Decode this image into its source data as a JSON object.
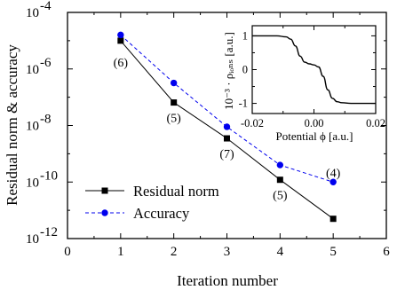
{
  "chart_data": [
    {
      "type": "line",
      "xlabel": "Iteration number",
      "ylabel": "Residual norm & accuracy",
      "xlim": [
        0,
        6
      ],
      "ylim_log10": [
        -12,
        -4
      ],
      "yscale": "log",
      "x_ticks": [
        "0",
        "1",
        "2",
        "3",
        "4",
        "5",
        "6"
      ],
      "y_ticks": [
        {
          "base": "10",
          "exp": "-4"
        },
        {
          "base": "10",
          "exp": "-6"
        },
        {
          "base": "10",
          "exp": "-8"
        },
        {
          "base": "10",
          "exp": "-10"
        },
        {
          "base": "10",
          "exp": "-12"
        }
      ],
      "legend_position": "lower-left",
      "series": [
        {
          "name": "Residual norm",
          "color": "#000000",
          "marker": "square",
          "linestyle": "solid",
          "x": [
            1,
            2,
            3,
            4,
            5
          ],
          "y": [
            1e-05,
            6.5e-08,
            3.5e-09,
            1.2e-10,
            5e-12
          ]
        },
        {
          "name": "Accuracy",
          "color": "#0000ee",
          "marker": "circle",
          "linestyle": "dashed",
          "x": [
            1,
            2,
            3,
            4,
            5
          ],
          "y": [
            1.6e-05,
            3.2e-07,
            9e-09,
            4e-10,
            1e-10
          ]
        }
      ],
      "annotations": [
        {
          "text": "(6)",
          "x": 1,
          "y": 6e-06
        },
        {
          "text": "(5)",
          "x": 2,
          "y": 6.5e-08
        },
        {
          "text": "(7)",
          "x": 3,
          "y": 3.5e-09
        },
        {
          "text": "(5)",
          "x": 4,
          "y": 1.2e-10
        },
        {
          "text": "(4)",
          "x": 5,
          "y": 1e-10
        }
      ]
    },
    {
      "type": "line",
      "inset": true,
      "xlabel": "Potential ϕ [a.u.]",
      "ylabel": "10⁻³ · ρᵢₒₙₛ [a.u.]",
      "xlim": [
        -0.02,
        0.02
      ],
      "ylim": [
        -1.3,
        1.3
      ],
      "x_ticks": [
        "-0.02",
        "0.00",
        "0.02"
      ],
      "y_ticks": [
        "1",
        "0",
        "-1"
      ],
      "series": [
        {
          "color": "#000000",
          "x": [
            -0.02,
            -0.012,
            -0.009,
            -0.0075,
            -0.006,
            -0.0045,
            -0.003,
            -0.0015,
            0.0,
            0.0015,
            0.003,
            0.0045,
            0.006,
            0.0075,
            0.009,
            0.012,
            0.02
          ],
          "y": [
            1.0,
            1.0,
            0.97,
            0.9,
            0.7,
            0.4,
            0.22,
            0.17,
            0.14,
            0.08,
            -0.2,
            -0.6,
            -0.85,
            -0.95,
            -0.98,
            -1.0,
            -1.0
          ]
        }
      ]
    }
  ]
}
